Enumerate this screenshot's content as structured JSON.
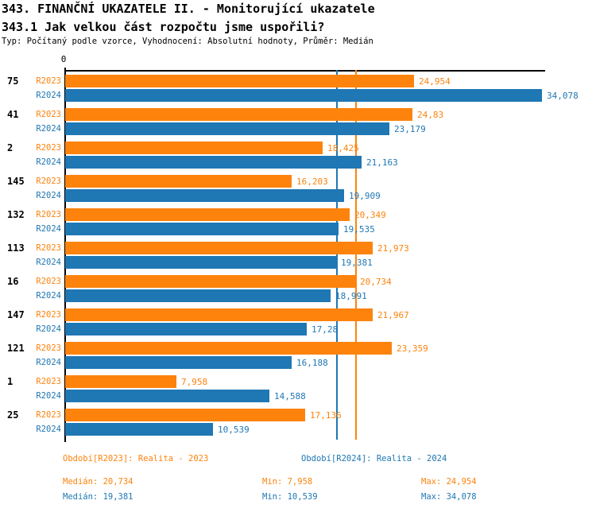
{
  "header": {
    "title": "343. FINANČNÍ UKAZATELE II. - Monitorující ukazatele",
    "subtitle": "343.1 Jak velkou část rozpočtu jsme uspořili?",
    "meta": "Typ: Počítaný podle vzorce, Vyhodnocení: Absolutní hodnoty, Průměr: Medián"
  },
  "chart_data": {
    "type": "bar",
    "orientation": "horizontal",
    "axis_zero_label": "0",
    "x_max": 34.078,
    "grid": false,
    "categories": [
      "75",
      "41",
      "2",
      "145",
      "132",
      "113",
      "16",
      "147",
      "121",
      "1",
      "25"
    ],
    "series": [
      {
        "name": "R2023",
        "color": "#fd830d",
        "values": [
          24.954,
          24.83,
          18.425,
          16.203,
          20.349,
          21.973,
          20.734,
          21.967,
          23.359,
          7.958,
          17.136
        ],
        "labels": [
          "24,954",
          "24,83",
          "18,425",
          "16,203",
          "20,349",
          "21,973",
          "20,734",
          "21,967",
          "23,359",
          "7,958",
          "17,136"
        ],
        "median": 20.734
      },
      {
        "name": "R2024",
        "color": "#1f77b4",
        "values": [
          34.078,
          23.179,
          21.163,
          19.909,
          19.535,
          19.381,
          18.991,
          17.28,
          16.188,
          14.588,
          10.539
        ],
        "labels": [
          "34,078",
          "23,179",
          "21,163",
          "19,909",
          "19,535",
          "19,381",
          "18,991",
          "17,28",
          "16,188",
          "14,588",
          "10,539"
        ],
        "median": 19.381
      }
    ]
  },
  "legend": [
    {
      "label": "Období[R2023]: Realita - 2023",
      "color": "#fd830d"
    },
    {
      "label": "Období[R2024]: Realita - 2024",
      "color": "#1f77b4"
    }
  ],
  "stats": {
    "rows": [
      {
        "series": "R2023",
        "median": "Medián: 20,734",
        "min": "Min: 7,958",
        "max": "Max: 24,954",
        "color": "#fd830d"
      },
      {
        "series": "R2024",
        "median": "Medián: 19,381",
        "min": "Min: 10,539",
        "max": "Max: 34,078",
        "color": "#1f77b4"
      }
    ]
  }
}
